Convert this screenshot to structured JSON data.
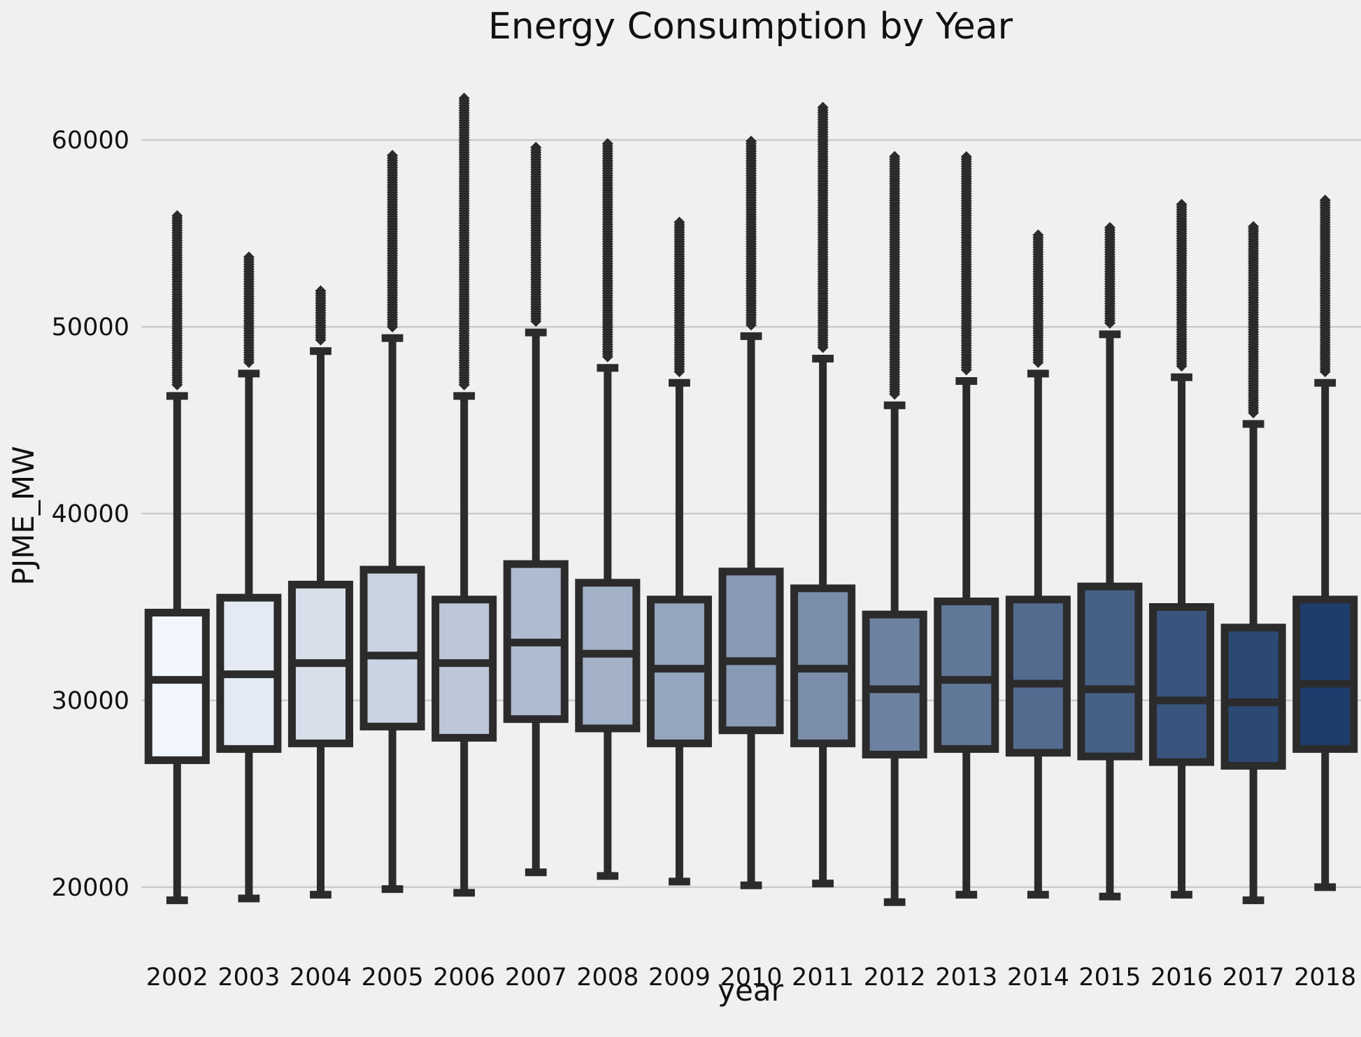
{
  "chart_data": {
    "type": "box",
    "title": "Energy Consumption by Year",
    "xlabel": "year",
    "ylabel": "PJME_MW",
    "ylim": [
      17300,
      64500
    ],
    "yticks": [
      20000,
      30000,
      40000,
      50000,
      60000
    ],
    "grid": true,
    "colors": {
      "background": "#f0f0f0",
      "grid": "#cbcbcb",
      "line": "#2b2b2b",
      "palette_start": "#f0f6fc",
      "palette_end": "#1f3d6b"
    },
    "categories": [
      "2002",
      "2003",
      "2004",
      "2005",
      "2006",
      "2007",
      "2008",
      "2009",
      "2010",
      "2011",
      "2012",
      "2013",
      "2014",
      "2015",
      "2016",
      "2017",
      "2018"
    ],
    "boxes": [
      {
        "year": "2002",
        "whislo": 19300,
        "q1": 26800,
        "med": 31100,
        "q3": 34700,
        "whishi": 46300,
        "fliers_max": 56000
      },
      {
        "year": "2003",
        "whislo": 19400,
        "q1": 27400,
        "med": 31400,
        "q3": 35500,
        "whishi": 47500,
        "fliers_max": 53800
      },
      {
        "year": "2004",
        "whislo": 19600,
        "q1": 27700,
        "med": 32000,
        "q3": 36200,
        "whishi": 48700,
        "fliers_max": 52000
      },
      {
        "year": "2005",
        "whislo": 19900,
        "q1": 28600,
        "med": 32400,
        "q3": 37000,
        "whishi": 49400,
        "fliers_max": 59200
      },
      {
        "year": "2006",
        "whislo": 19700,
        "q1": 28000,
        "med": 32000,
        "q3": 35400,
        "whishi": 46300,
        "fliers_max": 62300
      },
      {
        "year": "2007",
        "whislo": 20800,
        "q1": 29000,
        "med": 33100,
        "q3": 37300,
        "whishi": 49700,
        "fliers_max": 59700
      },
      {
        "year": "2008",
        "whislo": 20600,
        "q1": 28500,
        "med": 32500,
        "q3": 36300,
        "whishi": 47800,
        "fliers_max": 59800
      },
      {
        "year": "2009",
        "whislo": 20300,
        "q1": 27700,
        "med": 31700,
        "q3": 35400,
        "whishi": 47000,
        "fliers_max": 55600
      },
      {
        "year": "2010",
        "whislo": 20100,
        "q1": 28400,
        "med": 32100,
        "q3": 36900,
        "whishi": 49500,
        "fliers_max": 60000
      },
      {
        "year": "2011",
        "whislo": 20200,
        "q1": 27700,
        "med": 31700,
        "q3": 36000,
        "whishi": 48300,
        "fliers_max": 61800
      },
      {
        "year": "2012",
        "whislo": 19200,
        "q1": 27100,
        "med": 30600,
        "q3": 34600,
        "whishi": 45800,
        "fliers_max": 59100
      },
      {
        "year": "2013",
        "whislo": 19600,
        "q1": 27400,
        "med": 31100,
        "q3": 35300,
        "whishi": 47100,
        "fliers_max": 59200
      },
      {
        "year": "2014",
        "whislo": 19600,
        "q1": 27200,
        "med": 30900,
        "q3": 35400,
        "whishi": 47500,
        "fliers_max": 55000
      },
      {
        "year": "2015",
        "whislo": 19500,
        "q1": 27000,
        "med": 30600,
        "q3": 36100,
        "whishi": 49600,
        "fliers_max": 55300
      },
      {
        "year": "2016",
        "whislo": 19600,
        "q1": 26700,
        "med": 30000,
        "q3": 35000,
        "whishi": 47300,
        "fliers_max": 56600
      },
      {
        "year": "2017",
        "whislo": 19300,
        "q1": 26500,
        "med": 29900,
        "q3": 33900,
        "whishi": 44800,
        "fliers_max": 55400
      },
      {
        "year": "2018",
        "whislo": 20000,
        "q1": 27400,
        "med": 30900,
        "q3": 35400,
        "whishi": 47000,
        "fliers_max": 56800
      }
    ]
  }
}
